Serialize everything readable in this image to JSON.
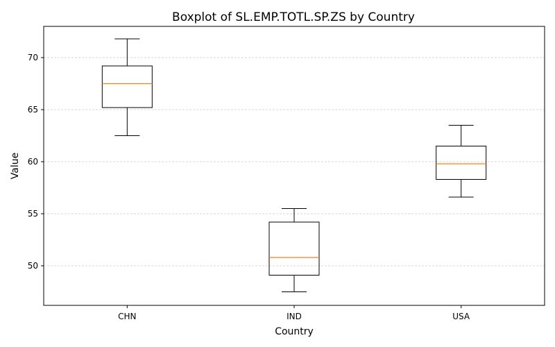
{
  "chart_data": {
    "type": "boxplot",
    "title": "Boxplot of SL.EMP.TOTL.SP.ZS by Country",
    "xlabel": "Country",
    "ylabel": "Value",
    "categories": [
      "CHN",
      "IND",
      "USA"
    ],
    "boxes": [
      {
        "category": "CHN",
        "whisker_low": 62.5,
        "q1": 65.2,
        "median": 67.5,
        "q3": 69.2,
        "whisker_high": 71.8
      },
      {
        "category": "IND",
        "whisker_low": 47.5,
        "q1": 49.1,
        "median": 50.8,
        "q3": 54.2,
        "whisker_high": 55.5
      },
      {
        "category": "USA",
        "whisker_low": 56.6,
        "q1": 58.3,
        "median": 59.8,
        "q3": 61.5,
        "whisker_high": 63.5
      }
    ],
    "ylim": [
      46.2,
      73.0
    ],
    "yticks": [
      50,
      55,
      60,
      65,
      70
    ],
    "grid": "y-dashed",
    "colors": {
      "box": "#000000",
      "median": "#ff7f0e",
      "grid": "#b0b0b0"
    }
  }
}
